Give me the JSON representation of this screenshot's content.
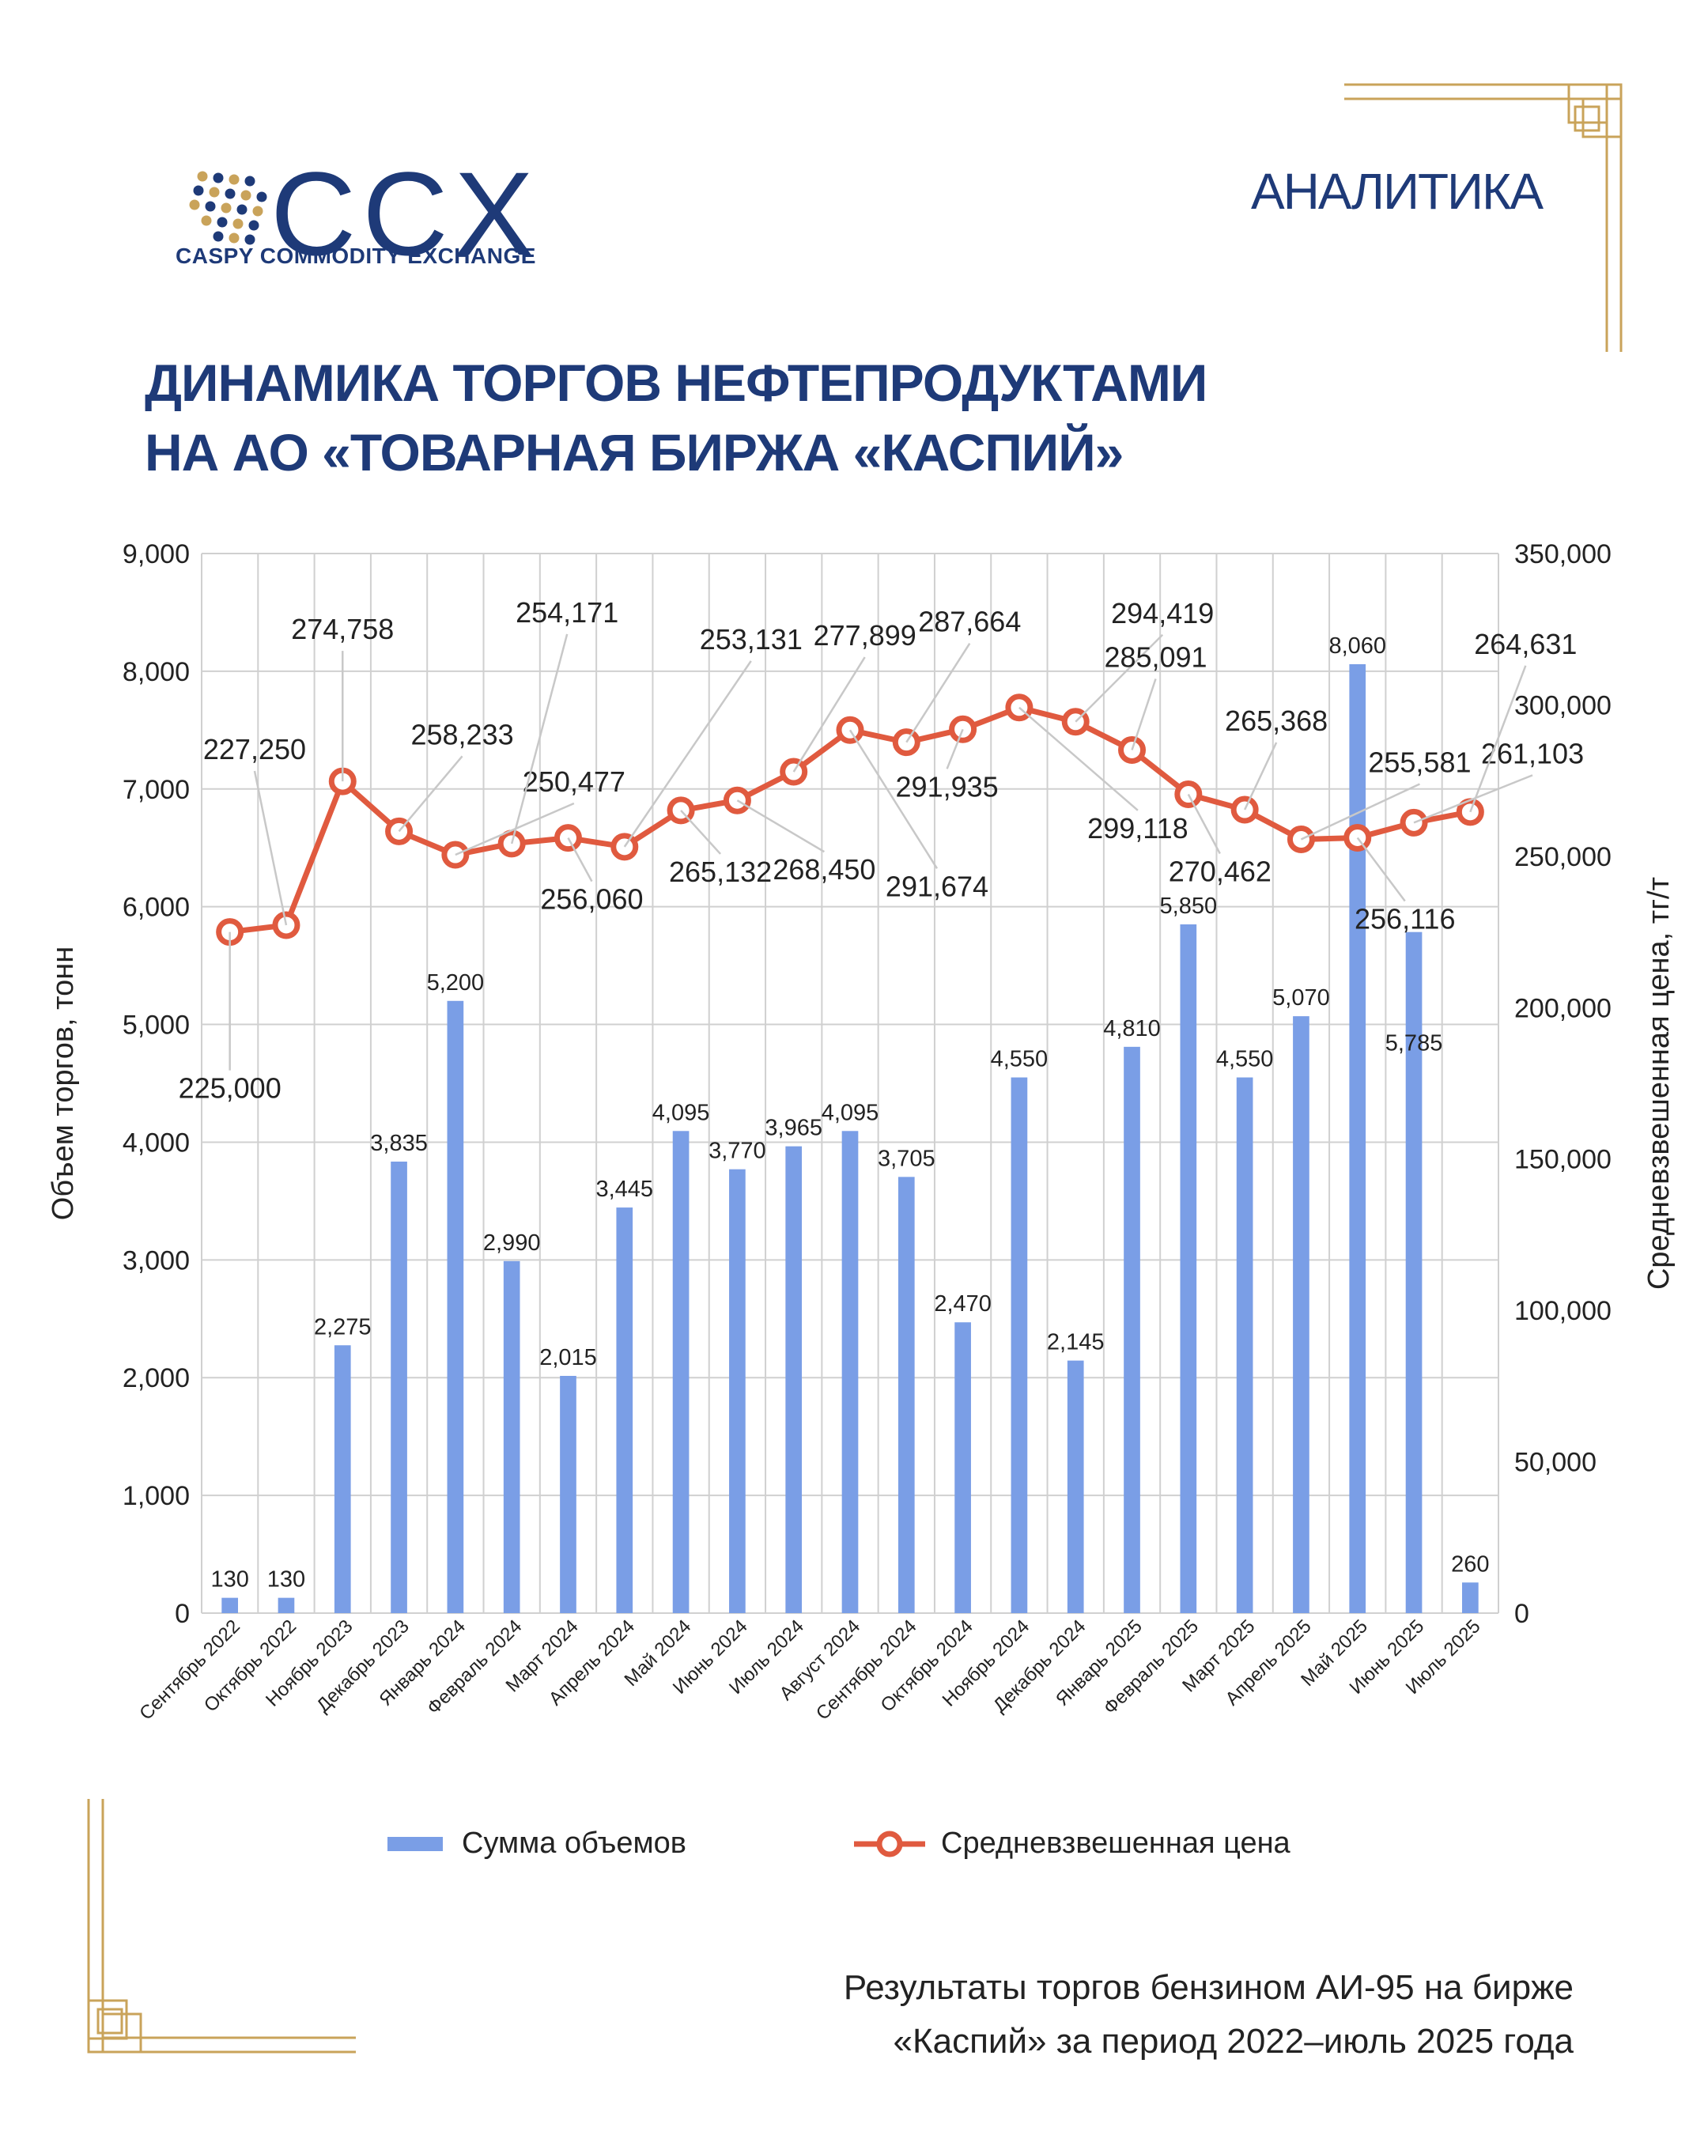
{
  "header": {
    "logo_text": "CCX",
    "logo_subtitle": "CASPY COMMODITY EXCHANGE",
    "section_label": "АНАЛИТИКА",
    "title_line1": "ДИНАМИКА ТОРГОВ НЕФТЕПРОДУКТАМИ",
    "title_line2": "НА АО «ТОВАРНАЯ БИРЖА «КАСПИЙ»"
  },
  "footer": {
    "caption_line1": "Результаты торгов бензином АИ-95 на бирже",
    "caption_line2": "«Каспий» за период 2022–июль 2025 года"
  },
  "colors": {
    "brand": "#1e3a78",
    "bar": "#7a9ee6",
    "line": "#e05a3f",
    "gold": "#c9a35a"
  },
  "chart_data": {
    "type": "bar",
    "categories": [
      "Сентябрь 2022",
      "Октябрь 2022",
      "Ноябрь 2023",
      "Декабрь 2023",
      "Январь 2024",
      "Февраль 2024",
      "Март 2024",
      "Апрель 2024",
      "Май 2024",
      "Июнь 2024",
      "Июль 2024",
      "Август 2024",
      "Сентябрь 2024",
      "Октябрь 2024",
      "Ноябрь 2024",
      "Декабрь 2024",
      "Январь 2025",
      "Февраль 2025",
      "Март 2025",
      "Апрель 2025",
      "Май 2025",
      "Июнь 2025",
      "Июль 2025"
    ],
    "series": [
      {
        "name": "Сумма объемов",
        "type": "bar",
        "axis": "left",
        "values": [
          130,
          130,
          2275,
          3835,
          5200,
          2990,
          2015,
          3445,
          4095,
          3770,
          3965,
          4095,
          3705,
          2470,
          4550,
          2145,
          4810,
          5850,
          4550,
          5070,
          8060,
          5785,
          260
        ],
        "labels": [
          "130",
          "130",
          "2,275",
          "3,835",
          "5,200",
          "2,990",
          "2,015",
          "3,445",
          "4,095",
          "3,770",
          "3,965",
          "4,095",
          "3,705",
          "2,470",
          "4,550",
          "2,145",
          "4,810",
          "5,850",
          "4,550",
          "5,070",
          "8,060",
          "5,785",
          "260"
        ]
      },
      {
        "name": "Средневзвешенная цена",
        "type": "line",
        "axis": "right",
        "values": [
          225000,
          227250,
          274758,
          258233,
          250477,
          254171,
          256060,
          253131,
          265132,
          268450,
          277899,
          291674,
          287664,
          291935,
          299118,
          294419,
          285091,
          270462,
          265368,
          255581,
          256116,
          261103,
          264631
        ],
        "labels": [
          "225,000",
          "227,250",
          "274,758",
          "258,233",
          "250,477",
          "254,171",
          "256,060",
          "253,131",
          "265,132",
          "268,450",
          "277,899",
          "291,674",
          "287,664",
          "291,935",
          "299,118",
          "294,419",
          "285,091",
          "270,462",
          "265,368",
          "255,581",
          "256,116",
          "261,103",
          "264,631"
        ]
      }
    ],
    "ylabel": "Объем торгов, тонн",
    "y2label": "Средневзвешенная цена, тг/т",
    "ylim": [
      0,
      9000
    ],
    "y2lim": [
      0,
      350000
    ],
    "yticks": [
      "0",
      "1,000",
      "2,000",
      "3,000",
      "4,000",
      "5,000",
      "6,000",
      "7,000",
      "8,000",
      "9,000"
    ],
    "y2ticks": [
      "0",
      "50,000",
      "100,000",
      "150,000",
      "200,000",
      "250,000",
      "300,000",
      "350,000"
    ],
    "grid": true,
    "legend": "bottom"
  }
}
